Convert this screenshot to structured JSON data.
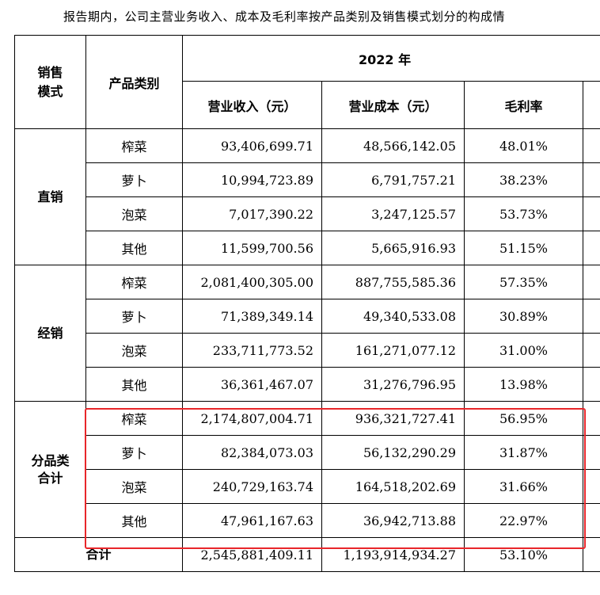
{
  "intro_text": "报告期内，公司主营业务收入、成本及毛利率按产品类别及销售模式划分的构成情",
  "headers": {
    "mode": "销售\n模式",
    "product": "产品类别",
    "year": "2022 年",
    "revenue": "营业收入（元）",
    "cost": "营业成本（元）",
    "margin": "毛利率"
  },
  "groups": [
    {
      "label": "直销",
      "rows": [
        {
          "product": "榨菜",
          "revenue": "93,406,699.71",
          "cost": "48,566,142.05",
          "margin": "48.01%"
        },
        {
          "product": "萝卜",
          "revenue": "10,994,723.89",
          "cost": "6,791,757.21",
          "margin": "38.23%"
        },
        {
          "product": "泡菜",
          "revenue": "7,017,390.22",
          "cost": "3,247,125.57",
          "margin": "53.73%"
        },
        {
          "product": "其他",
          "revenue": "11,599,700.56",
          "cost": "5,665,916.93",
          "margin": "51.15%"
        }
      ]
    },
    {
      "label": "经销",
      "rows": [
        {
          "product": "榨菜",
          "revenue": "2,081,400,305.00",
          "cost": "887,755,585.36",
          "margin": "57.35%"
        },
        {
          "product": "萝卜",
          "revenue": "71,389,349.14",
          "cost": "49,340,533.08",
          "margin": "30.89%"
        },
        {
          "product": "泡菜",
          "revenue": "233,711,773.52",
          "cost": "161,271,077.12",
          "margin": "31.00%"
        },
        {
          "product": "其他",
          "revenue": "36,361,467.07",
          "cost": "31,276,796.95",
          "margin": "13.98%"
        }
      ]
    },
    {
      "label": "分品类\n合计",
      "rows": [
        {
          "product": "榨菜",
          "revenue": "2,174,807,004.71",
          "cost": "936,321,727.41",
          "margin": "56.95%"
        },
        {
          "product": "萝卜",
          "revenue": "82,384,073.03",
          "cost": "56,132,290.29",
          "margin": "31.87%"
        },
        {
          "product": "泡菜",
          "revenue": "240,729,163.74",
          "cost": "164,518,202.69",
          "margin": "31.66%"
        },
        {
          "product": "其他",
          "revenue": "47,961,167.63",
          "cost": "36,942,713.88",
          "margin": "22.97%"
        }
      ]
    }
  ],
  "total": {
    "label": "合计",
    "revenue": "2,545,881,409.11",
    "cost": "1,193,914,934.27",
    "margin": "53.10%"
  },
  "highlight_color": "#e8262a"
}
